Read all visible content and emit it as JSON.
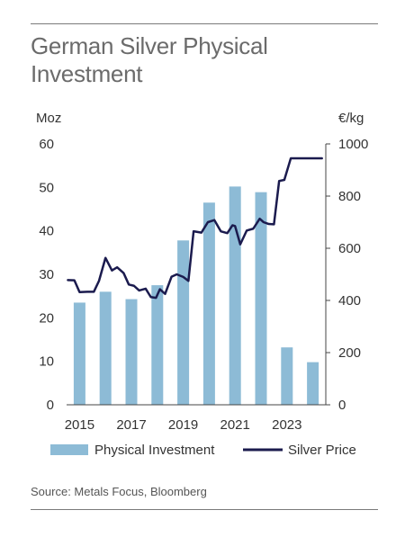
{
  "chart_data": {
    "type": "bar+line",
    "title": "German Silver Physical Investment",
    "source": "Source: Metals Focus, Bloomberg",
    "y_left": {
      "unit": "Moz",
      "range": [
        0,
        60
      ],
      "ticks": [
        "0",
        "10",
        "20",
        "30",
        "40",
        "50",
        "60"
      ]
    },
    "y_right": {
      "unit": "€/kg",
      "range": [
        0,
        1000
      ],
      "ticks": [
        "0",
        "200",
        "400",
        "600",
        "800",
        "1000"
      ]
    },
    "x_range": [
      2014.5,
      2024.5
    ],
    "x_tick_labels": [
      {
        "year": 2015,
        "label": "2015"
      },
      {
        "year": 2017,
        "label": "2017"
      },
      {
        "year": 2019,
        "label": "2019"
      },
      {
        "year": 2021,
        "label": "2021"
      },
      {
        "year": 2023,
        "label": "2023"
      }
    ],
    "legend": [
      "Physical Investment",
      "Silver Price"
    ],
    "legend_position": "bottom",
    "colors": {
      "bars": "#8dbbd6",
      "line": "#1b1b4e",
      "axis": "#555555"
    },
    "series": [
      {
        "name": "Physical Investment",
        "type": "bar",
        "axis": "left",
        "x": [
          2015,
          2016,
          2017,
          2018,
          2019,
          2020,
          2021,
          2022,
          2023,
          2024
        ],
        "values": [
          23.5,
          26.0,
          24.3,
          27.5,
          37.8,
          46.5,
          50.2,
          48.9,
          13.2,
          9.8
        ]
      },
      {
        "name": "Silver Price",
        "type": "line",
        "axis": "right",
        "x": [
          2014.55,
          2014.8,
          2015.0,
          2015.3,
          2015.55,
          2015.75,
          2016.0,
          2016.25,
          2016.45,
          2016.7,
          2016.9,
          2017.1,
          2017.3,
          2017.55,
          2017.75,
          2017.95,
          2018.1,
          2018.3,
          2018.55,
          2018.75,
          2019.0,
          2019.2,
          2019.4,
          2019.7,
          2019.95,
          2020.2,
          2020.45,
          2020.7,
          2020.9,
          2021.0,
          2021.2,
          2021.45,
          2021.7,
          2021.95,
          2022.1,
          2022.3,
          2022.5,
          2022.7,
          2022.9,
          2023.15,
          2023.4,
          2023.65,
          2023.9,
          2024.05,
          2024.2,
          2024.35
        ],
        "values": [
          478,
          477,
          432,
          433,
          433,
          475,
          563,
          515,
          527,
          505,
          461,
          456,
          438,
          445,
          413,
          410,
          443,
          425,
          491,
          500,
          490,
          475,
          665,
          660,
          700,
          708,
          665,
          658,
          688,
          685,
          615,
          668,
          675,
          713,
          700,
          693,
          692,
          858,
          862,
          945,
          945,
          945,
          945,
          945,
          945,
          945
        ]
      }
    ]
  }
}
